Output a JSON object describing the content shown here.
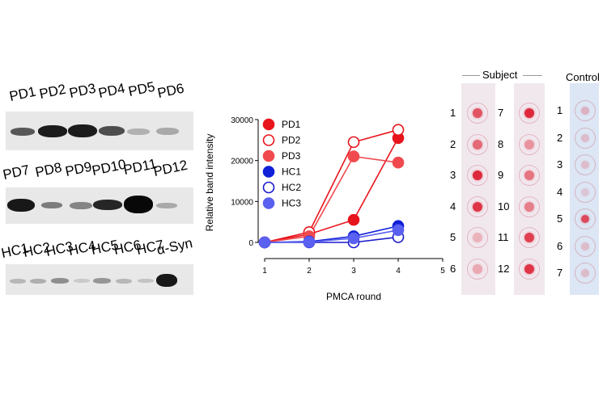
{
  "western_blot": {
    "row1": {
      "labels": [
        "PD1",
        "PD2",
        "PD3",
        "PD4",
        "PD5",
        "PD6"
      ],
      "intensities": [
        0.7,
        0.95,
        0.95,
        0.75,
        0.25,
        0.3
      ]
    },
    "row2": {
      "labels": [
        "PD7",
        "PD8",
        "PD9",
        "PD10",
        "PD11",
        "PD12"
      ],
      "intensities": [
        0.95,
        0.5,
        0.45,
        0.85,
        1.0,
        0.35
      ]
    },
    "row3": {
      "labels": [
        "HC1",
        "HC2",
        "HC3",
        "HC4",
        "HC5",
        "HC6",
        "HC7",
        "α-Syn"
      ],
      "intensities": [
        0.25,
        0.3,
        0.45,
        0.15,
        0.4,
        0.25,
        0.2,
        0.95
      ]
    }
  },
  "chart_data": {
    "type": "line",
    "title": "",
    "xlabel": "PMCA round",
    "ylabel": "Relative band intensity",
    "x_ticks": [
      "1",
      "2",
      "3",
      "4",
      "5"
    ],
    "y_ticks": [
      "0",
      "10000",
      "20000",
      "30000"
    ],
    "xlim": [
      1,
      5
    ],
    "ylim": [
      0,
      30000
    ],
    "x": [
      1,
      2,
      3,
      4
    ],
    "series": [
      {
        "name": "PD1",
        "values": [
          0,
          2000,
          5500,
          25500
        ],
        "color": "#e8141c",
        "marker": "filled"
      },
      {
        "name": "PD2",
        "values": [
          0,
          2500,
          24500,
          27500
        ],
        "color": "#e8141c",
        "marker": "open"
      },
      {
        "name": "PD3",
        "values": [
          0,
          1500,
          21000,
          19500
        ],
        "color": "#f04a4f",
        "marker": "filled"
      },
      {
        "name": "HC1",
        "values": [
          0,
          200,
          1500,
          4000
        ],
        "color": "#1020d8",
        "marker": "filled"
      },
      {
        "name": "HC2",
        "values": [
          0,
          0,
          0,
          1300
        ],
        "color": "#1a1acc",
        "marker": "open"
      },
      {
        "name": "HC3",
        "values": [
          0,
          100,
          1000,
          3000
        ],
        "color": "#5a60f0",
        "marker": "filled"
      }
    ]
  },
  "dot_blot": {
    "subject_header": "Subject",
    "control_header": "Control",
    "subject_col1": {
      "numbers": [
        "1",
        "2",
        "3",
        "4",
        "5",
        "6"
      ],
      "intensities": [
        0.7,
        0.6,
        0.9,
        0.85,
        0.25,
        0.3
      ]
    },
    "subject_col2": {
      "numbers": [
        "7",
        "8",
        "9",
        "10",
        "11",
        "12"
      ],
      "intensities": [
        0.9,
        0.4,
        0.55,
        0.5,
        0.8,
        0.85
      ]
    },
    "control": {
      "numbers": [
        "1",
        "2",
        "3",
        "4",
        "5",
        "6",
        "7"
      ],
      "intensities": [
        0.25,
        0.2,
        0.2,
        0.15,
        0.75,
        0.2,
        0.2
      ]
    }
  }
}
